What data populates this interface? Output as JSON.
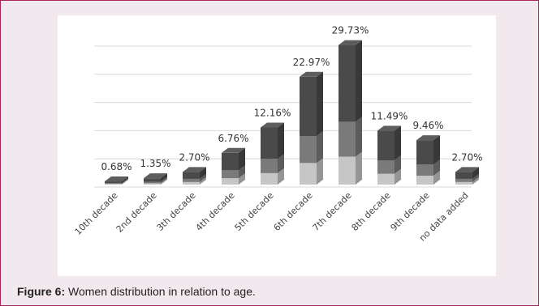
{
  "caption": {
    "label": "Figure 6:",
    "text": " Women distribution in relation to age."
  },
  "chart_data": {
    "type": "bar",
    "style": "3d-stacked",
    "title": "",
    "xlabel": "",
    "ylabel": "",
    "grid": true,
    "legend": "none",
    "categories": [
      "10th decade",
      "2nd decade",
      "3th decade",
      "4th decade",
      "5th decade",
      "6th decade",
      "7th decade",
      "8th decade",
      "9th decade",
      "no data added"
    ],
    "values": [
      0.68,
      1.35,
      2.7,
      6.76,
      12.16,
      22.97,
      29.73,
      11.49,
      9.46,
      2.7
    ],
    "data_labels": [
      "0.68%",
      "1.35%",
      "2.70%",
      "6.76%",
      "12.16%",
      "22.97%",
      "29.73%",
      "11.49%",
      "9.46%",
      "2.70%"
    ],
    "ylim": [
      0,
      30
    ],
    "colors": {
      "bottom": "#c6c6c6",
      "middle": "#7a7a7a",
      "top": "#4a4a4a",
      "grid": "#d9d9d9"
    }
  }
}
